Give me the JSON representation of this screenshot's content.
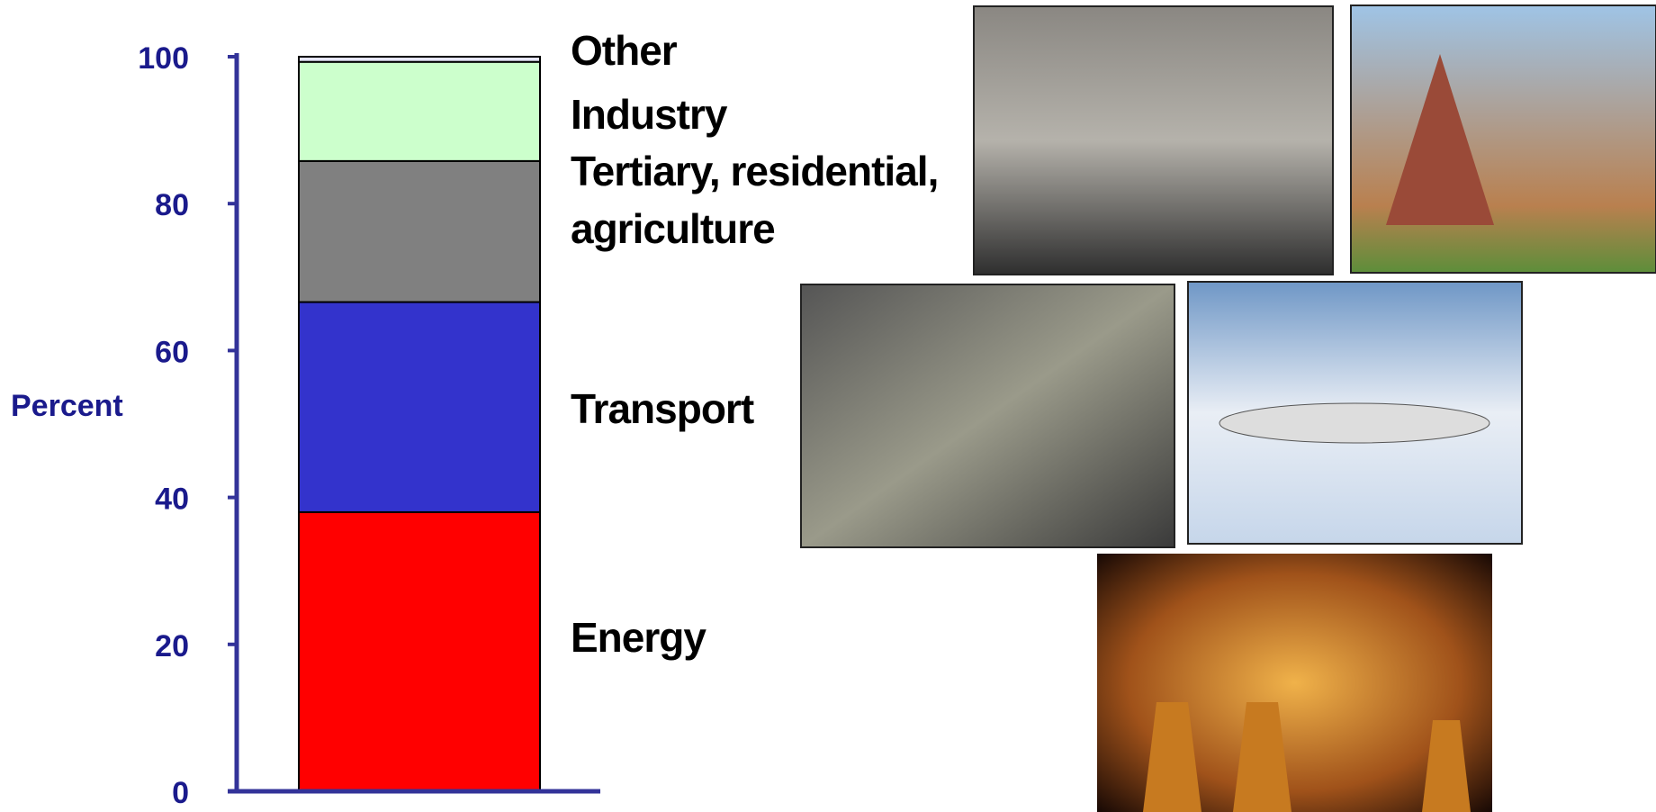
{
  "chart_data": {
    "type": "bar",
    "categories": [
      null
    ],
    "ylabel": "Percent",
    "ylim": [
      0,
      100
    ],
    "yticks": [
      0,
      20,
      40,
      60,
      80,
      100
    ],
    "series": [
      {
        "name": "Energy",
        "color": "#ff0000",
        "values": [
          38
        ]
      },
      {
        "name": "Transport",
        "color": "#3333cc",
        "values": [
          28.6
        ]
      },
      {
        "name": "Tertiary, residential, agriculture",
        "color": "#808080",
        "values": [
          19.2
        ]
      },
      {
        "name": "Industry",
        "color": "#ccffcc",
        "values": [
          13.5
        ]
      },
      {
        "name": "Other",
        "color": "#e6e6fa",
        "values": [
          0.7
        ]
      }
    ]
  }
}
